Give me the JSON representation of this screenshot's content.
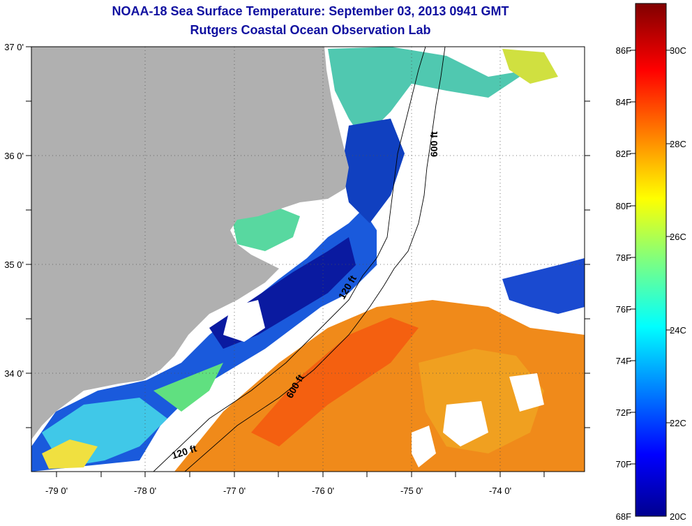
{
  "map": {
    "title": "NOAA-18 Sea Surface Temperature:  September 03, 2013 0941 GMT",
    "subtitle": "Rutgers Coastal Ocean Observation Lab",
    "lat_labels": [
      "37 0'",
      "36 0'",
      "35 0'",
      "34 0'"
    ],
    "lon_labels": [
      "-79 0'",
      "-78 0'",
      "-77 0'",
      "-76 0'",
      "-75 0'",
      "-74 0'"
    ],
    "contour_labels": [
      "600 ft",
      "120 ft",
      "600 ft",
      "120 ft"
    ],
    "colors": {
      "land": "#b0b0b0",
      "title_text": "#1010a0",
      "cloud": "#ffffff"
    }
  },
  "colorbar": {
    "f_labels": [
      "86F",
      "84F",
      "82F",
      "80F",
      "78F",
      "76F",
      "74F",
      "72F",
      "70F",
      "68F"
    ],
    "c_labels": [
      "30C",
      "28C",
      "26C",
      "24C",
      "22C",
      "20C"
    ],
    "colormap": "jet"
  }
}
